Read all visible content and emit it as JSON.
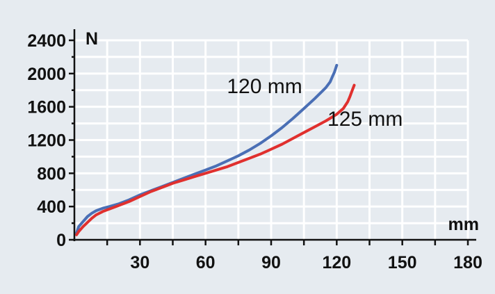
{
  "chart_data": {
    "type": "line",
    "title": "",
    "xlabel": "mm",
    "ylabel": "N",
    "xlim": [
      0,
      180
    ],
    "ylim": [
      0,
      2400
    ],
    "x_ticks": [
      30,
      60,
      90,
      120,
      150,
      180
    ],
    "x_tick_labels": [
      "30",
      "60",
      "90",
      "120",
      "150",
      "180"
    ],
    "y_ticks": [
      0,
      400,
      800,
      1200,
      1600,
      2000,
      2400
    ],
    "y_tick_labels": [
      "0",
      "400",
      "800",
      "1200",
      "1600",
      "2000",
      "2400"
    ],
    "grid": true,
    "legend": "inline labels",
    "series": [
      {
        "name": "120 mm",
        "color": "#4a6fb5",
        "x": [
          1,
          2,
          4,
          6,
          8,
          10,
          13,
          16,
          20,
          25,
          30,
          35,
          40,
          45,
          50,
          55,
          60,
          65,
          70,
          75,
          80,
          85,
          90,
          95,
          100,
          105,
          110,
          115,
          117,
          118,
          119,
          120
        ],
        "y": [
          80,
          160,
          220,
          280,
          320,
          350,
          380,
          400,
          430,
          480,
          540,
          590,
          640,
          690,
          740,
          790,
          840,
          890,
          950,
          1010,
          1080,
          1160,
          1250,
          1350,
          1460,
          1580,
          1700,
          1830,
          1900,
          1960,
          2020,
          2100
        ]
      },
      {
        "name": "125 mm",
        "color": "#e0302e",
        "x": [
          1,
          2,
          4,
          6,
          8,
          10,
          13,
          16,
          20,
          25,
          30,
          35,
          40,
          45,
          50,
          55,
          60,
          65,
          70,
          75,
          80,
          85,
          90,
          95,
          100,
          105,
          110,
          115,
          120,
          123,
          125,
          126,
          127,
          128
        ],
        "y": [
          60,
          100,
          160,
          210,
          260,
          300,
          340,
          370,
          410,
          460,
          520,
          580,
          630,
          680,
          720,
          760,
          800,
          840,
          880,
          930,
          980,
          1030,
          1090,
          1150,
          1220,
          1290,
          1360,
          1430,
          1510,
          1580,
          1660,
          1720,
          1790,
          1860
        ]
      }
    ]
  }
}
